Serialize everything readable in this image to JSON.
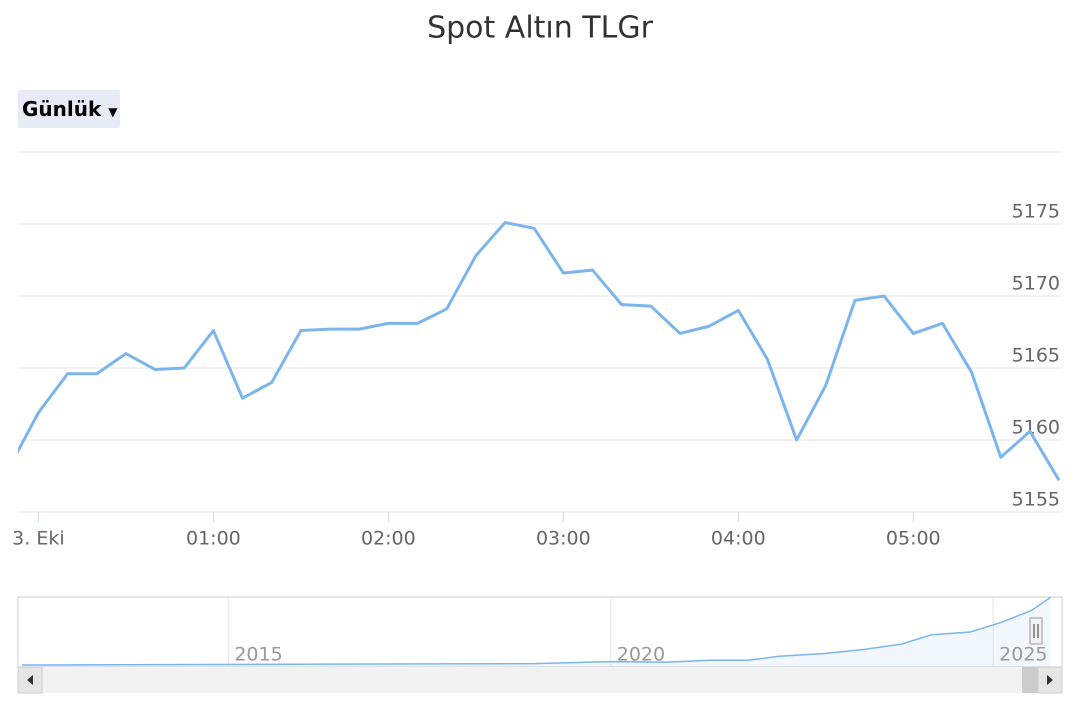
{
  "range_selector": {
    "label": "Günlük"
  },
  "chart_data": [
    {
      "type": "line",
      "title": "Spot Altın TLGr",
      "x": [
        -10,
        0,
        10,
        20,
        30,
        40,
        50,
        60,
        70,
        80,
        90,
        100,
        110,
        120,
        130,
        140,
        150,
        160,
        170,
        180,
        190,
        200,
        210,
        220,
        230,
        240,
        250,
        260,
        270,
        280,
        290,
        300,
        310,
        320,
        330,
        340,
        350
      ],
      "series": [
        {
          "color": "#7cb5ec",
          "values": [
            5158.1,
            5161.9,
            5164.6,
            5164.6,
            5166.0,
            5164.9,
            5165.0,
            5167.6,
            5162.9,
            5164.0,
            5167.6,
            5167.7,
            5167.7,
            5168.1,
            5168.1,
            5169.1,
            5172.8,
            5175.1,
            5174.7,
            5171.6,
            5171.8,
            5169.4,
            5169.3,
            5167.4,
            5167.9,
            5169.0,
            5165.6,
            5160.0,
            5163.8,
            5169.7,
            5170.0,
            5167.4,
            5168.1,
            5164.7,
            5158.8,
            5160.6,
            5157.2
          ]
        }
      ],
      "xlim": [
        -7,
        351
      ],
      "xticks": [
        {
          "value": 0,
          "label": "3. Eki"
        },
        {
          "value": 60,
          "label": "01:00"
        },
        {
          "value": 120,
          "label": "02:00"
        },
        {
          "value": 180,
          "label": "03:00"
        },
        {
          "value": 240,
          "label": "04:00"
        },
        {
          "value": 300,
          "label": "05:00"
        }
      ],
      "ylim": [
        5155,
        5180
      ],
      "yticks": [
        5155,
        5160,
        5165,
        5170,
        5175
      ],
      "grid": true
    },
    {
      "type": "area",
      "x": [
        2012.3,
        2019,
        2020,
        2020.7,
        2021.3,
        2021.8,
        2022.2,
        2022.8,
        2023.3,
        2023.8,
        2024.2,
        2024.7,
        2025.1,
        2025.5,
        2025.75
      ],
      "series": [
        {
          "color": "#7cb5ec",
          "values": [
            150,
            250,
            400,
            350,
            500,
            500,
            800,
            1000,
            1300,
            1700,
            2400,
            2600,
            3300,
            4200,
            5170
          ]
        }
      ],
      "xlim": [
        2012.25,
        2025.9
      ],
      "xticks": [
        2015,
        2020,
        2025
      ],
      "ylim": [
        0,
        5200
      ]
    }
  ]
}
